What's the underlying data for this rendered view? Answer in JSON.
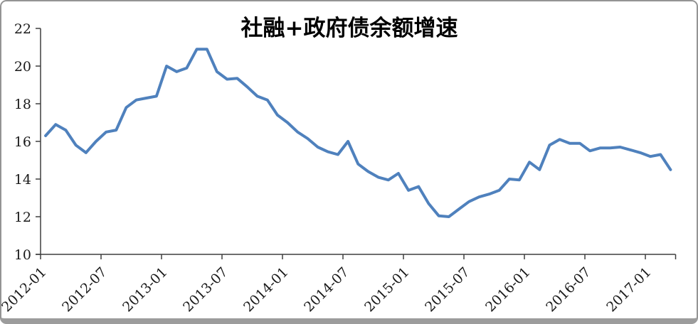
{
  "chart_data": {
    "type": "line",
    "title": "社融+政府债余额增速",
    "categories": [
      "2012-01",
      "2012-02",
      "2012-03",
      "2012-04",
      "2012-05",
      "2012-06",
      "2012-07",
      "2012-08",
      "2012-09",
      "2012-10",
      "2012-11",
      "2012-12",
      "2013-01",
      "2013-02",
      "2013-03",
      "2013-04",
      "2013-05",
      "2013-06",
      "2013-07",
      "2013-08",
      "2013-09",
      "2013-10",
      "2013-11",
      "2013-12",
      "2014-01",
      "2014-02",
      "2014-03",
      "2014-04",
      "2014-05",
      "2014-06",
      "2014-07",
      "2014-08",
      "2014-09",
      "2014-10",
      "2014-11",
      "2014-12",
      "2015-01",
      "2015-02",
      "2015-03",
      "2015-04",
      "2015-05",
      "2015-06",
      "2015-07",
      "2015-08",
      "2015-09",
      "2015-10",
      "2015-11",
      "2015-12",
      "2016-01",
      "2016-02",
      "2016-03",
      "2016-04",
      "2016-05",
      "2016-06",
      "2016-07",
      "2016-08",
      "2016-09",
      "2016-10",
      "2016-11",
      "2016-12",
      "2017-01",
      "2017-02",
      "2017-03"
    ],
    "values": [
      16.3,
      16.9,
      16.6,
      15.8,
      15.4,
      16.0,
      16.5,
      16.6,
      17.8,
      18.2,
      18.3,
      18.4,
      20.0,
      19.7,
      19.9,
      20.9,
      20.9,
      19.7,
      19.3,
      19.35,
      18.9,
      18.4,
      18.2,
      17.4,
      17.0,
      16.5,
      16.15,
      15.7,
      15.45,
      15.3,
      16.0,
      14.8,
      14.4,
      14.1,
      13.95,
      14.3,
      13.4,
      13.6,
      12.7,
      12.05,
      12.0,
      12.4,
      12.8,
      13.05,
      13.2,
      13.4,
      14.0,
      13.95,
      14.9,
      14.5,
      15.8,
      16.1,
      15.9,
      15.9,
      15.5,
      15.65,
      15.65,
      15.7,
      15.55,
      15.4,
      15.2,
      15.3,
      14.5
    ],
    "xlabel": "",
    "ylabel": "",
    "ylim": [
      10,
      22
    ],
    "yticks": [
      10,
      12,
      14,
      16,
      18,
      20,
      22
    ],
    "xtick_labels": [
      "2012-01",
      "2012-07",
      "2013-01",
      "2013-07",
      "2014-01",
      "2014-07",
      "2015-01",
      "2015-07",
      "2016-01",
      "2016-07",
      "2017-01"
    ],
    "xtick_interval_months": 6,
    "grid": false,
    "legend": false,
    "line_color": "#4F81BD",
    "axis_color": "#3f3f3f",
    "text_color": "#1a1a1a"
  }
}
